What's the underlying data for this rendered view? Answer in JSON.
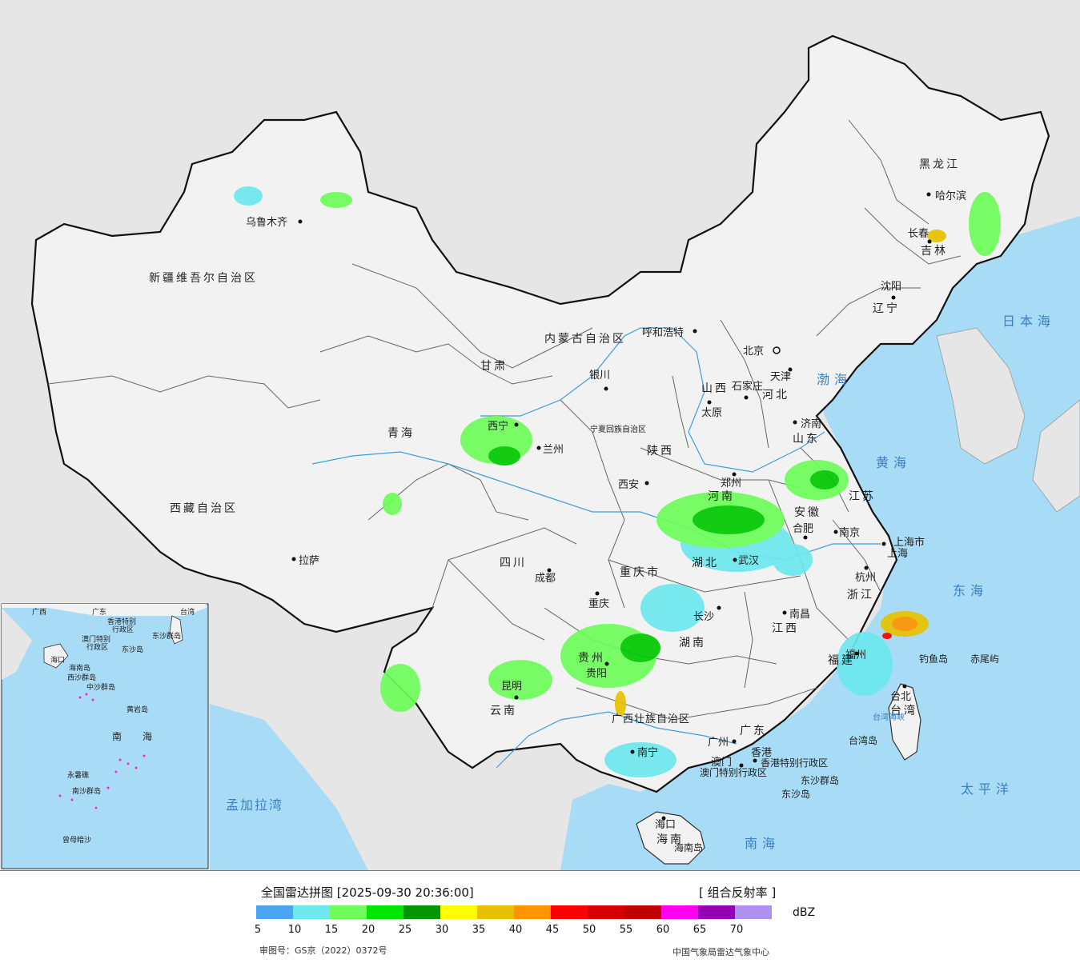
{
  "map": {
    "provinces": [
      "新疆维吾尔自治区",
      "西藏自治区",
      "青海",
      "甘肃",
      "内蒙古自治区",
      "四川",
      "云南",
      "贵州",
      "重庆市",
      "陕西",
      "山西",
      "河北",
      "河南",
      "湖北",
      "湖南",
      "江西",
      "安徽",
      "江苏",
      "浙江",
      "福建",
      "广东",
      "广西壮族自治区",
      "海南",
      "山东",
      "辽宁",
      "吉林",
      "黑龙江",
      "宁夏回族自治区",
      "台湾",
      "上海市"
    ],
    "cities": [
      "乌鲁木齐",
      "拉萨",
      "西宁",
      "兰州",
      "银川",
      "呼和浩特",
      "西安",
      "成都",
      "重庆",
      "昆明",
      "贵阳",
      "南宁",
      "长沙",
      "武汉",
      "郑州",
      "太原",
      "石家庄",
      "北京",
      "天津",
      "济南",
      "南京",
      "合肥",
      "上海",
      "杭州",
      "南昌",
      "福州",
      "台北",
      "广州",
      "香港",
      "澳门",
      "海口",
      "沈阳",
      "长春",
      "哈尔滨"
    ],
    "labels": {
      "hk_sar": "香港特别行政区",
      "macao_sar": "澳门特别行政区",
      "dongsha": "东沙群岛",
      "dongsha_dao": "东沙岛",
      "diaoyu": "钓鱼岛",
      "chiwei": "赤尾屿",
      "taiwan_dao": "台湾岛",
      "hainan_dao": "海南岛"
    },
    "seas": {
      "japan_sea": "日本海",
      "bohai": "渤海",
      "huanghai": "黄海",
      "donghai": "东海",
      "pacific": "太平洋",
      "nanhai": "南海",
      "bengal": "孟加拉湾",
      "taiwan_strait": "台湾海峡"
    },
    "inset": {
      "labels": [
        "广西",
        "广东",
        "台湾",
        "香港特别",
        "行政区",
        "澳门特别",
        "行政区",
        "东沙群岛",
        "东沙岛",
        "海口",
        "海南岛",
        "西沙群岛",
        "中沙群岛",
        "黄岩岛",
        "南沙群岛",
        "永暑礁",
        "南",
        "海",
        "曾母暗沙"
      ]
    },
    "colors": {
      "land": "#f2f2f2",
      "foreign": "#e6e6e6",
      "sea": "#a8dcf6",
      "border": "#111111"
    }
  },
  "legend": {
    "title": "全国雷达拼图 [2025-09-30 20:36:00]",
    "product": "[ 组合反射率 ]",
    "unit": "dBZ",
    "ticks": [
      "5",
      "10",
      "15",
      "20",
      "25",
      "30",
      "35",
      "40",
      "45",
      "50",
      "55",
      "60",
      "65",
      "70"
    ],
    "colors": [
      "#4ba3f3",
      "#6ce8ee",
      "#6efd5a",
      "#00e600",
      "#009600",
      "#fffd00",
      "#e8c200",
      "#ff9400",
      "#ff0000",
      "#d60000",
      "#c00000",
      "#ff00f0",
      "#9600b4",
      "#ad90f0"
    ],
    "approval": "审图号：GS京（2022）0372号",
    "org": "中国气象局雷达气象中心"
  }
}
